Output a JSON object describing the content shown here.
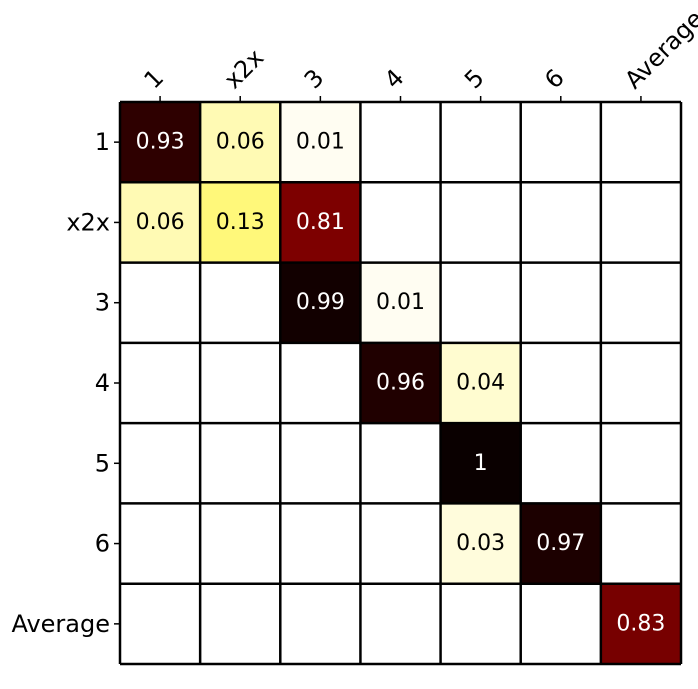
{
  "chart_data": {
    "type": "heatmap",
    "title": "",
    "xlabel": "",
    "ylabel": "",
    "x_categories": [
      "1",
      "x2x",
      "3",
      "4",
      "5",
      "6",
      "Average"
    ],
    "y_categories": [
      "1",
      "x2x",
      "3",
      "4",
      "5",
      "6",
      "Average"
    ],
    "colormap": "hot_r",
    "grid": true,
    "values": [
      [
        0.93,
        0.06,
        0.01,
        null,
        null,
        null,
        null
      ],
      [
        0.06,
        0.13,
        0.81,
        null,
        null,
        null,
        null
      ],
      [
        null,
        null,
        0.99,
        0.01,
        null,
        null,
        null
      ],
      [
        null,
        null,
        null,
        0.96,
        0.04,
        null,
        null
      ],
      [
        null,
        null,
        null,
        null,
        1,
        null,
        null
      ],
      [
        null,
        null,
        null,
        null,
        0.03,
        0.97,
        null
      ],
      [
        null,
        null,
        null,
        null,
        null,
        null,
        0.83
      ]
    ],
    "cell_labels": [
      [
        "0.93",
        "0.06",
        "0.01",
        "",
        "",
        "",
        ""
      ],
      [
        "0.06",
        "0.13",
        "0.81",
        "",
        "",
        "",
        ""
      ],
      [
        "",
        "",
        "0.99",
        "0.01",
        "",
        "",
        ""
      ],
      [
        "",
        "",
        "",
        "0.96",
        "0.04",
        "",
        ""
      ],
      [
        "",
        "",
        "",
        "",
        "1",
        "",
        ""
      ],
      [
        "",
        "",
        "",
        "",
        "0.03",
        "0.97",
        ""
      ],
      [
        "",
        "",
        "",
        "",
        "",
        "",
        "0.83"
      ]
    ],
    "colors": {
      "0.93": "#2e0000",
      "0.06": "#fffab4",
      "0.01": "#fffdf2",
      "0.13": "#fff87a",
      "0.81": "#7d0000",
      "0.99": "#120000",
      "0.96": "#200000",
      "0.04": "#fffcd0",
      "1": "#0a0000",
      "0.03": "#fffcdc",
      "0.97": "#1c0000",
      "0.83": "#770000"
    }
  }
}
